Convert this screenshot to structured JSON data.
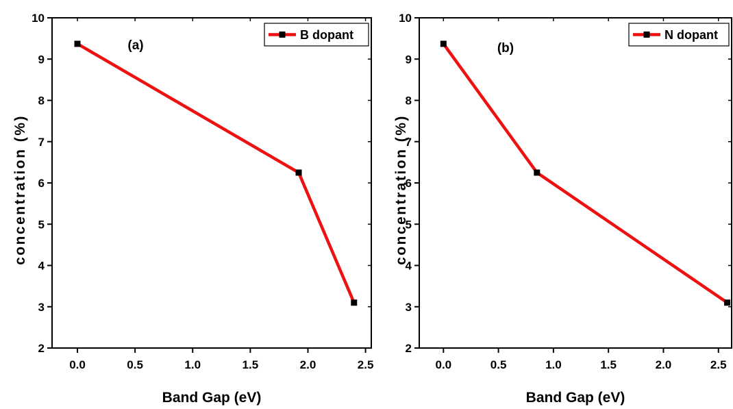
{
  "colors": {
    "line": "#ee1111",
    "marker": "#000000",
    "axis": "#000000"
  },
  "chart_data": [
    {
      "type": "line",
      "panel_label": "(a)",
      "xlabel": "Band Gap (eV)",
      "ylabel": "concentration (%)",
      "xlim": [
        -0.22,
        2.55
      ],
      "ylim": [
        2,
        10
      ],
      "xticks": [
        0.0,
        0.5,
        1.0,
        1.5,
        2.0,
        2.5
      ],
      "xtick_labels": [
        "0.0",
        "0.5",
        "1.0",
        "1.5",
        "2.0",
        "2.5"
      ],
      "yticks": [
        2,
        3,
        4,
        5,
        6,
        7,
        8,
        9,
        10
      ],
      "ytick_labels": [
        "2",
        "3",
        "4",
        "5",
        "6",
        "7",
        "8",
        "9",
        "10"
      ],
      "legend_position": "top-right",
      "series": [
        {
          "name": "B dopant",
          "x": [
            0.0,
            1.92,
            2.4
          ],
          "y": [
            9.37,
            6.25,
            3.1
          ]
        }
      ]
    },
    {
      "type": "line",
      "panel_label": "(b)",
      "xlabel": "Band Gap (eV)",
      "ylabel": "concentration (%)",
      "xlim": [
        -0.22,
        2.62
      ],
      "ylim": [
        2,
        10
      ],
      "xticks": [
        0.0,
        0.5,
        1.0,
        1.5,
        2.0,
        2.5
      ],
      "xtick_labels": [
        "0.0",
        "0.5",
        "1.0",
        "1.5",
        "2.0",
        "2.5"
      ],
      "yticks": [
        2,
        3,
        4,
        5,
        6,
        7,
        8,
        9,
        10
      ],
      "ytick_labels": [
        "2",
        "3",
        "4",
        "5",
        "6",
        "7",
        "8",
        "9",
        "10"
      ],
      "legend_position": "top-right",
      "series": [
        {
          "name": "N dopant",
          "x": [
            0.0,
            0.85,
            2.58
          ],
          "y": [
            9.37,
            6.25,
            3.1
          ]
        }
      ]
    }
  ]
}
